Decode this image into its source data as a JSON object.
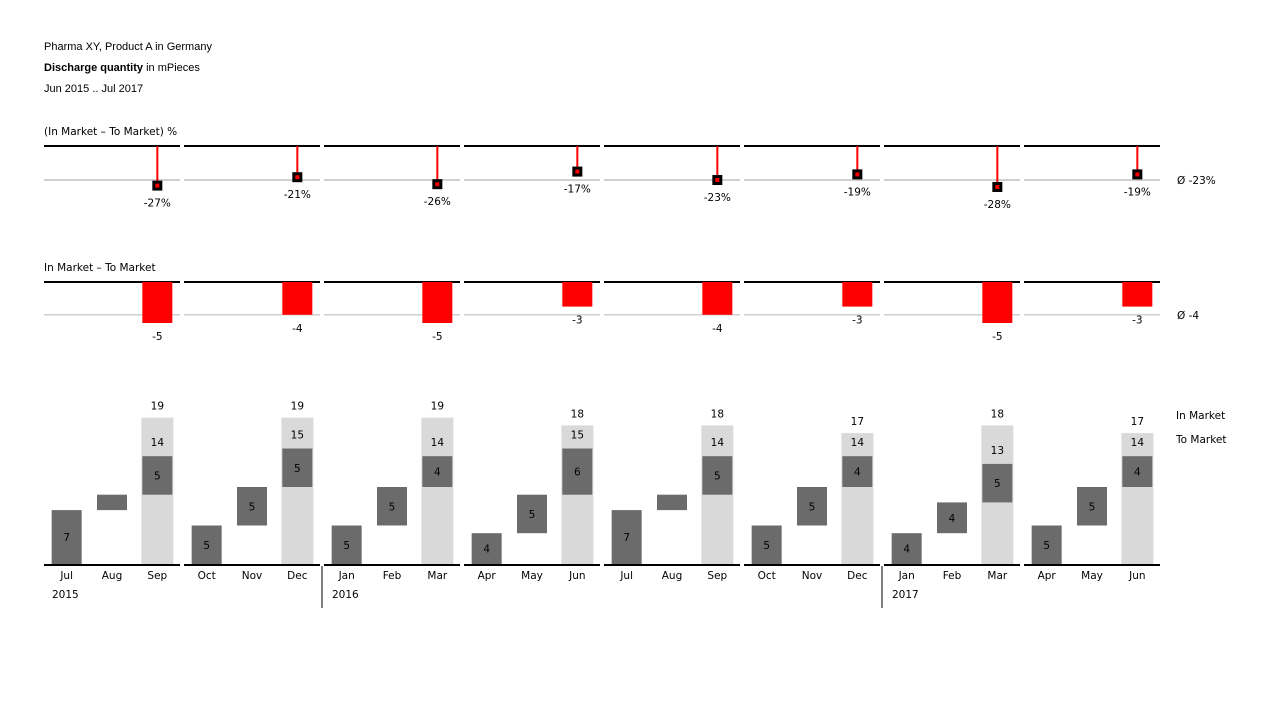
{
  "header": {
    "line1": "Pharma XY, Product A in Germany",
    "line2_bold": "Discharge quantity",
    "line2_rest": " in mPieces",
    "line3": "Jun 2015 .. Jul 2017"
  },
  "colors": {
    "negative": "#ff0000",
    "to_market": "#6b6b6b",
    "in_market": "#d9d9d9",
    "axis": "#000000",
    "baseline": "#d0d0d0"
  },
  "chart_data": [
    {
      "type": "pin",
      "title": "(In Market – To Market) %",
      "categories": [
        "Jul 2015 – Sep 2015",
        "Oct 2015 – Dec 2015",
        "Jan 2016 – Mar 2016",
        "Apr 2016 – Jun 2016",
        "Jul 2016 – Sep 2016",
        "Oct 2016 – Dec 2016",
        "Jan 2017 – Mar 2017",
        "Apr 2017 – Jun 2017"
      ],
      "values": [
        -27,
        -21,
        -26,
        -17,
        -23,
        -19,
        -28,
        -19
      ],
      "labels": [
        "-27%",
        "-21%",
        "-26%",
        "-17%",
        "-23%",
        "-19%",
        "-28%",
        "-19%"
      ],
      "average_label": "Ø -23%"
    },
    {
      "type": "bar",
      "title": "In Market – To Market",
      "categories": [
        "Jul 2015 – Sep 2015",
        "Oct 2015 – Dec 2015",
        "Jan 2016 – Mar 2016",
        "Apr 2016 – Jun 2016",
        "Jul 2016 – Sep 2016",
        "Oct 2016 – Dec 2016",
        "Jan 2017 – Mar 2017",
        "Apr 2017 – Jun 2017"
      ],
      "values": [
        -5,
        -4,
        -5,
        -3,
        -4,
        -3,
        -5,
        -3
      ],
      "labels": [
        "-5",
        "-4",
        "-5",
        "-3",
        "-4",
        "-3",
        "-5",
        "-3"
      ],
      "average_label": "Ø -4"
    },
    {
      "type": "waterfall",
      "legend": [
        "In Market",
        "To Market"
      ],
      "months": [
        "Jul",
        "Aug",
        "Sep",
        "Oct",
        "Nov",
        "Dec",
        "Jan",
        "Feb",
        "Mar",
        "Apr",
        "May",
        "Jun",
        "Jul",
        "Aug",
        "Sep",
        "Oct",
        "Nov",
        "Dec",
        "Jan",
        "Feb",
        "Mar",
        "Apr",
        "May",
        "Jun"
      ],
      "years": [
        {
          "label": "2015",
          "month_index": 0
        },
        {
          "label": "2016",
          "month_index": 6
        },
        {
          "label": "2017",
          "month_index": 18
        }
      ],
      "to_market": [
        7,
        2,
        5,
        5,
        5,
        5,
        5,
        5,
        4,
        4,
        5,
        6,
        7,
        2,
        5,
        5,
        5,
        4,
        4,
        4,
        5,
        5,
        5,
        4
      ],
      "to_market_labels": [
        "7",
        "",
        "5",
        "5",
        "5",
        "5",
        "5",
        "5",
        "4",
        "4",
        "5",
        "6",
        "7",
        "",
        "5",
        "5",
        "5",
        "4",
        "4",
        "4",
        "5",
        "5",
        "5",
        "4"
      ],
      "quarter_in_market": [
        19,
        19,
        19,
        18,
        18,
        17,
        18,
        17
      ],
      "quarter_to_market_total": [
        14,
        15,
        14,
        15,
        14,
        14,
        13,
        14
      ]
    }
  ]
}
